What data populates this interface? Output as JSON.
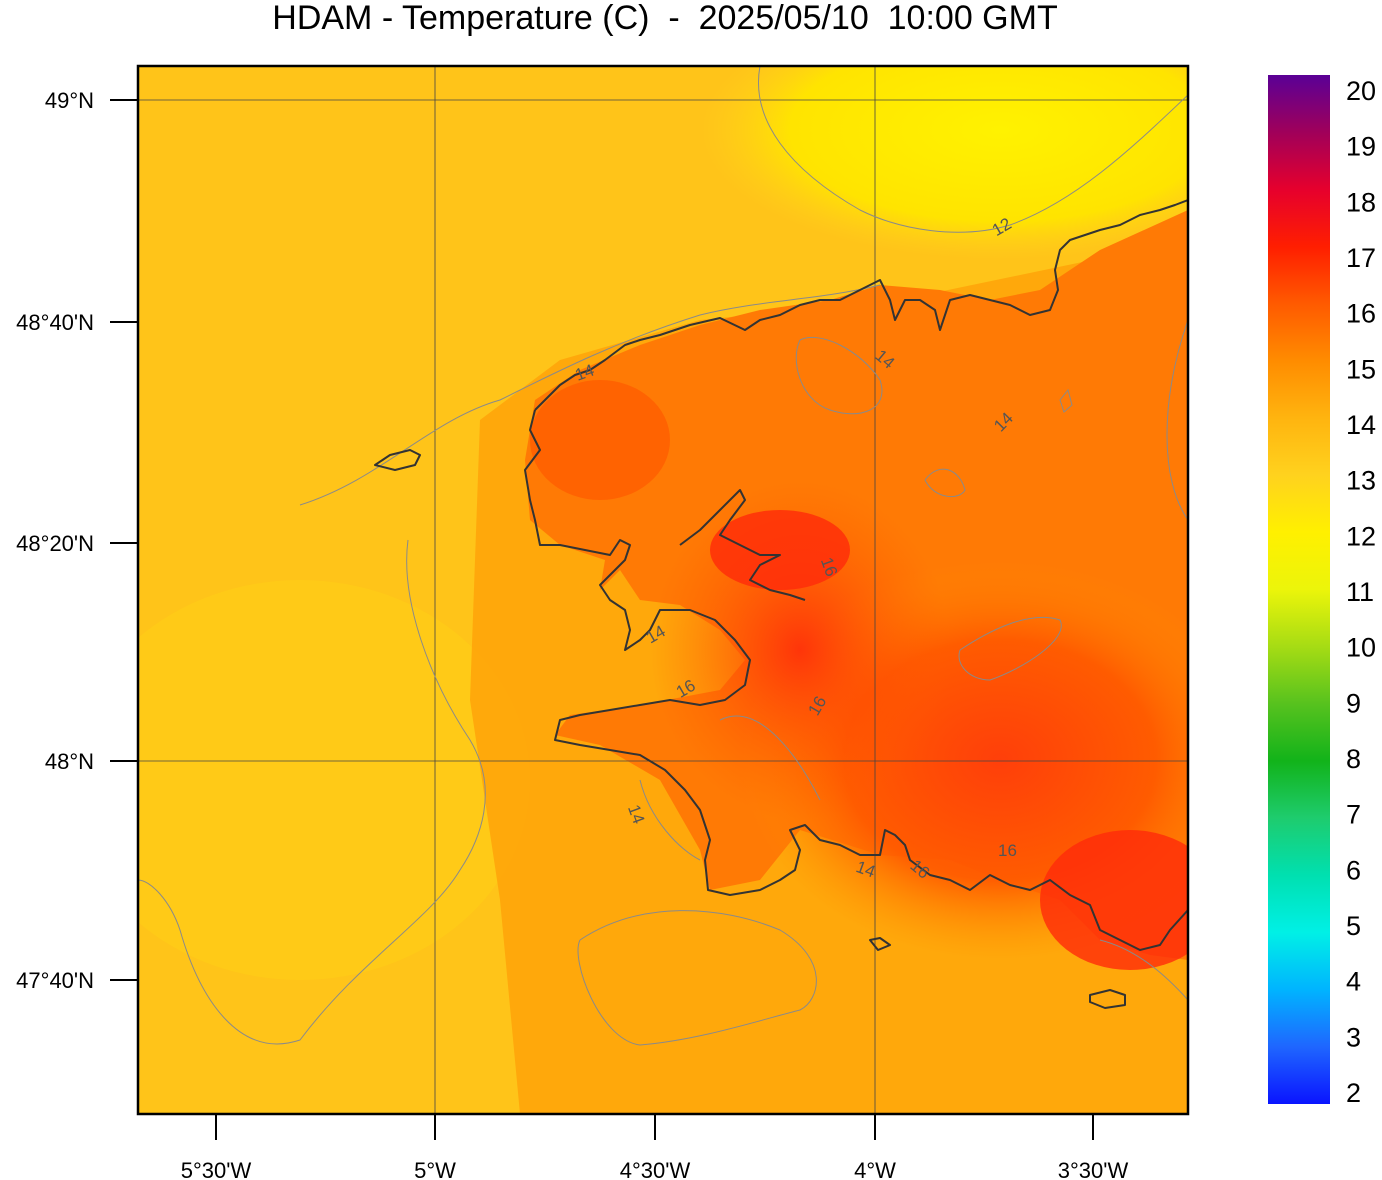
{
  "title": "HDAM - Temperature (C)  -  2025/05/10  10:00 GMT",
  "map": {
    "lon_ticks": [
      "5°30'W",
      "5°W",
      "4°30'W",
      "4°W",
      "3°30'W"
    ],
    "lat_ticks": [
      "49°N",
      "48°40'N",
      "48°20'N",
      "48°N",
      "47°40'N"
    ]
  },
  "colorbar": {
    "labels": [
      "2",
      "3",
      "4",
      "5",
      "6",
      "7",
      "8",
      "9",
      "10",
      "11",
      "12",
      "13",
      "14",
      "15",
      "16",
      "17",
      "18",
      "19",
      "20"
    ],
    "stops": [
      "#0a14ff",
      "#1f66ff",
      "#00b4ff",
      "#00f0e6",
      "#00e0b0",
      "#1ecc6e",
      "#12b31a",
      "#57c21e",
      "#a6dc14",
      "#ecf50a",
      "#fff000",
      "#ffd21e",
      "#ffb40f",
      "#ff8c00",
      "#ff5a00",
      "#ff1e00",
      "#e6002d",
      "#a0005a",
      "#5a0096"
    ]
  },
  "contour_labels": [
    "12",
    "14",
    "14",
    "14",
    "14",
    "16",
    "16",
    "16",
    "16",
    "14",
    "14",
    "16"
  ]
}
